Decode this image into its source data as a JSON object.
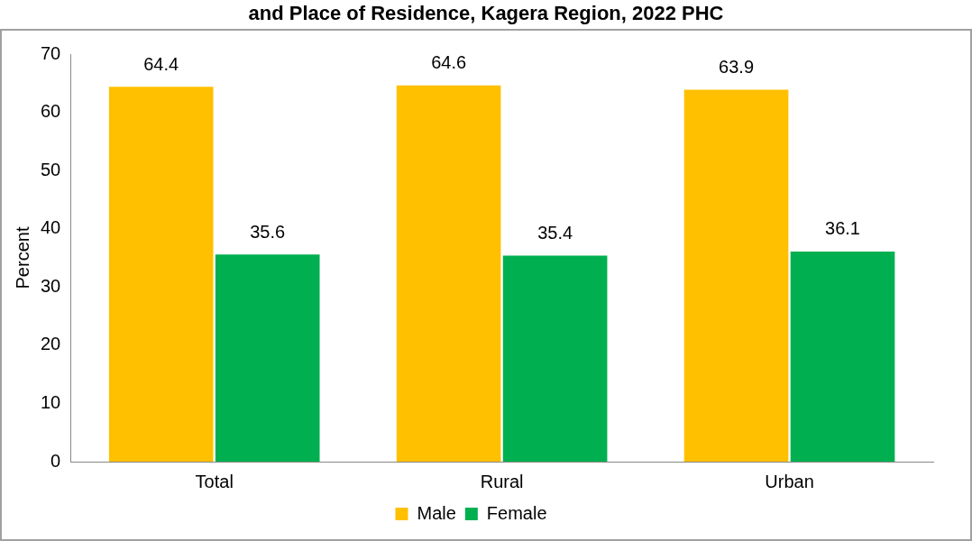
{
  "chart_data": {
    "type": "bar",
    "title": "and Place of Residence, Kagera Region, 2022 PHC",
    "ylabel": "Percent",
    "categories": [
      "Total",
      "Rural",
      "Urban"
    ],
    "series": [
      {
        "name": "Male",
        "color": "#ffc000",
        "values": [
          64.4,
          64.6,
          63.9
        ]
      },
      {
        "name": "Female",
        "color": "#00b050",
        "values": [
          35.6,
          35.4,
          36.1
        ]
      }
    ],
    "ylim": [
      0,
      70
    ],
    "yticks": [
      0,
      10,
      20,
      30,
      40,
      50,
      60,
      70
    ],
    "grid": false,
    "legend": "bottom",
    "data_labels": true
  }
}
